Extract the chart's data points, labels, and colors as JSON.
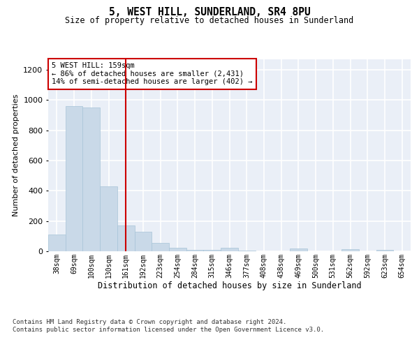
{
  "title": "5, WEST HILL, SUNDERLAND, SR4 8PU",
  "subtitle": "Size of property relative to detached houses in Sunderland",
  "xlabel": "Distribution of detached houses by size in Sunderland",
  "ylabel": "Number of detached properties",
  "footnote": "Contains HM Land Registry data © Crown copyright and database right 2024.\nContains public sector information licensed under the Open Government Licence v3.0.",
  "bar_color": "#c9d9e8",
  "bar_edge_color": "#a8c4d8",
  "vline_color": "#cc0000",
  "annotation_text": "5 WEST HILL: 159sqm\n← 86% of detached houses are smaller (2,431)\n14% of semi-detached houses are larger (402) →",
  "categories": [
    "38sqm",
    "69sqm",
    "100sqm",
    "130sqm",
    "161sqm",
    "192sqm",
    "223sqm",
    "254sqm",
    "284sqm",
    "315sqm",
    "346sqm",
    "377sqm",
    "408sqm",
    "438sqm",
    "469sqm",
    "500sqm",
    "531sqm",
    "562sqm",
    "592sqm",
    "623sqm",
    "654sqm"
  ],
  "values": [
    110,
    960,
    950,
    430,
    170,
    130,
    55,
    25,
    8,
    8,
    25,
    5,
    0,
    0,
    18,
    0,
    0,
    12,
    0,
    10,
    0
  ],
  "vline_index": 4,
  "ylim": [
    0,
    1270
  ],
  "yticks": [
    0,
    200,
    400,
    600,
    800,
    1000,
    1200
  ],
  "background_color": "#eaeff7",
  "grid_color": "#ffffff",
  "fig_bg": "#ffffff"
}
